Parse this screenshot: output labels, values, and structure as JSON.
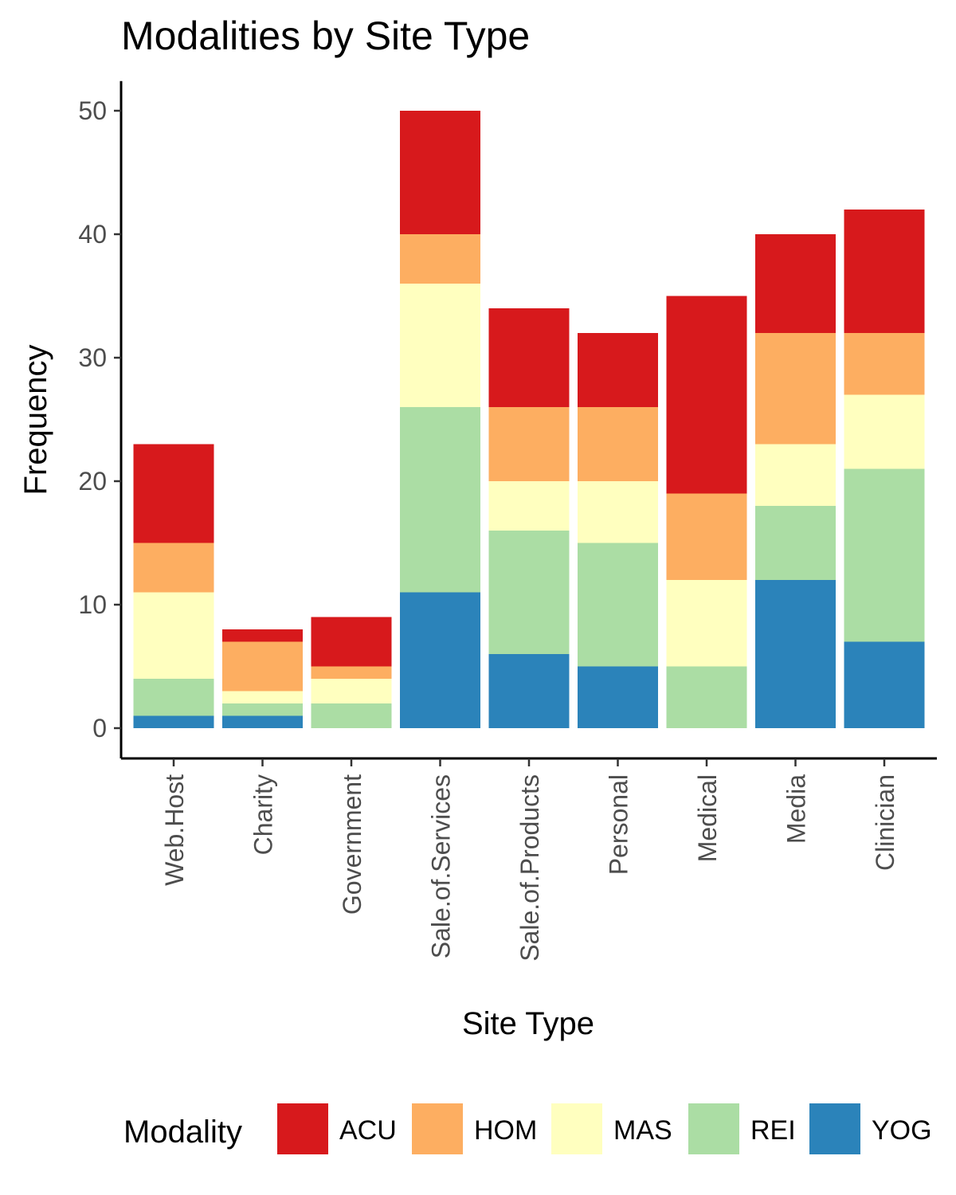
{
  "chart_data": {
    "type": "bar",
    "stacked": true,
    "title": "Modalities by Site Type",
    "xlabel": "Site Type",
    "ylabel": "Frequency",
    "ylim": [
      0,
      52
    ],
    "yticks": [
      0,
      10,
      20,
      30,
      40,
      50
    ],
    "grid": false,
    "legend_position": "bottom",
    "legend_title": "Modality",
    "categories": [
      "Web.Host",
      "Charity",
      "Government",
      "Sale.of.Services",
      "Sale.of.Products",
      "Personal",
      "Medical",
      "Media",
      "Clinician"
    ],
    "series": [
      {
        "name": "YOG",
        "color": "#2b83ba",
        "values": [
          1,
          1,
          0,
          11,
          6,
          5,
          0,
          12,
          7
        ]
      },
      {
        "name": "REI",
        "color": "#abdda4",
        "values": [
          3,
          1,
          2,
          15,
          10,
          10,
          5,
          6,
          14
        ]
      },
      {
        "name": "MAS",
        "color": "#ffffbf",
        "values": [
          7,
          1,
          2,
          10,
          4,
          5,
          7,
          5,
          6
        ]
      },
      {
        "name": "HOM",
        "color": "#fdae61",
        "values": [
          4,
          4,
          1,
          4,
          6,
          6,
          7,
          9,
          5
        ]
      },
      {
        "name": "ACU",
        "color": "#d7191c",
        "values": [
          8,
          1,
          4,
          10,
          8,
          6,
          16,
          8,
          10
        ]
      }
    ],
    "legend_order": [
      "ACU",
      "HOM",
      "MAS",
      "REI",
      "YOG"
    ]
  }
}
